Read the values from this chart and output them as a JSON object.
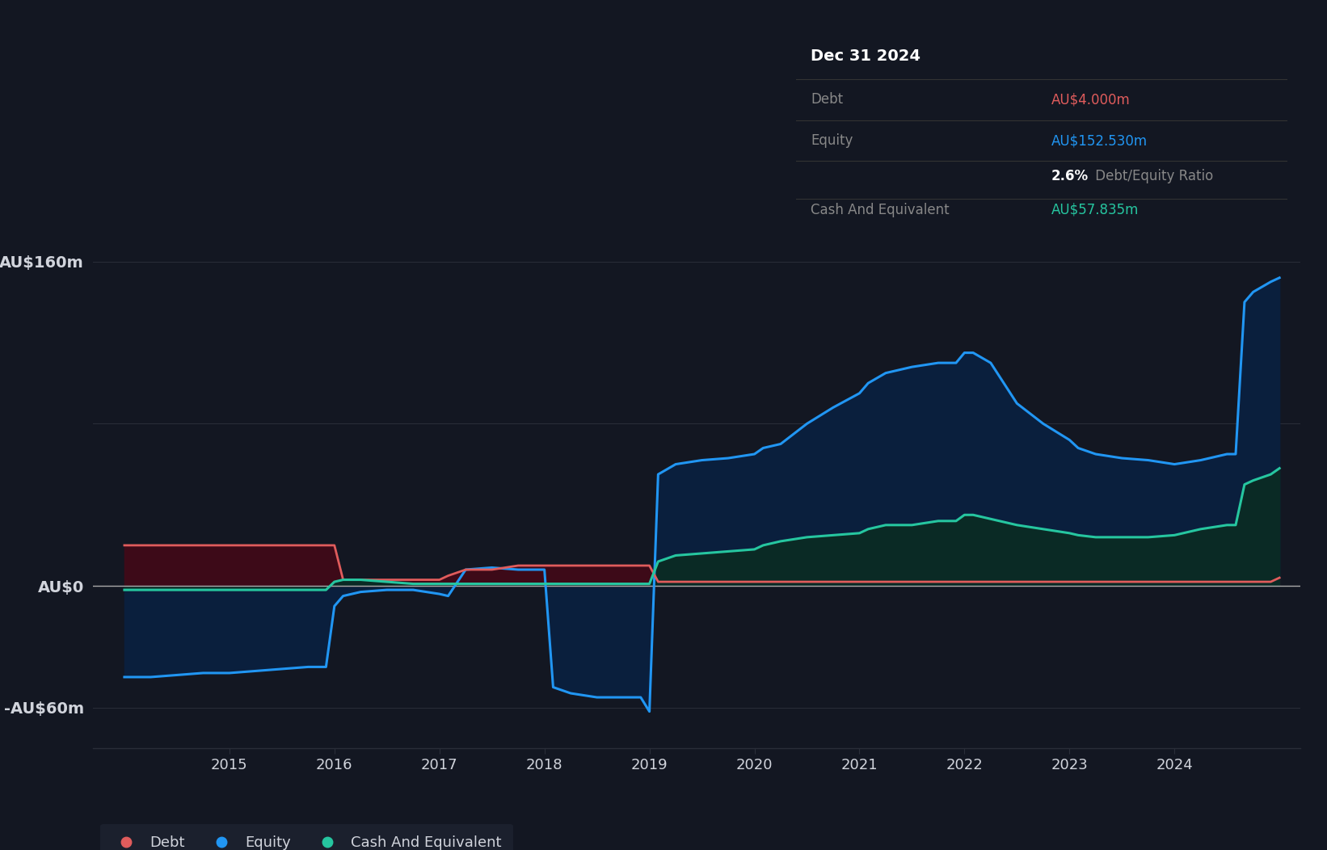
{
  "bg_color": "#131722",
  "plot_bg_color": "#131722",
  "grid_color": "#2a2e39",
  "zero_line_color": "#aaaaaa",
  "tooltip_date": "Dec 31 2024",
  "tooltip_debt": "AU$4.000m",
  "tooltip_equity": "AU$152.530m",
  "tooltip_ratio": "2.6%",
  "tooltip_ratio_suffix": " Debt/Equity Ratio",
  "tooltip_cash": "AU$57.835m",
  "ylabel_color": "#d1d4dc",
  "debt_color": "#e05c5c",
  "debt_fill_color": "#3d0a18",
  "equity_color": "#2196f3",
  "equity_fill_color": "#0a1f3d",
  "cash_color": "#26c6a0",
  "cash_fill_color": "#0a2a25",
  "legend_bg": "#1e2330",
  "ylim": [
    -80,
    180
  ],
  "xlim": [
    2013.7,
    2025.2
  ],
  "dates": [
    2014.0,
    2014.083,
    2014.25,
    2014.5,
    2014.75,
    2015.0,
    2015.25,
    2015.5,
    2015.75,
    2015.92,
    2016.0,
    2016.083,
    2016.25,
    2016.5,
    2016.75,
    2017.0,
    2017.083,
    2017.25,
    2017.5,
    2017.75,
    2017.92,
    2018.0,
    2018.083,
    2018.25,
    2018.5,
    2018.75,
    2018.917,
    2019.0,
    2019.083,
    2019.25,
    2019.5,
    2019.75,
    2020.0,
    2020.083,
    2020.25,
    2020.5,
    2020.75,
    2021.0,
    2021.083,
    2021.25,
    2021.5,
    2021.75,
    2021.92,
    2022.0,
    2022.083,
    2022.25,
    2022.5,
    2022.75,
    2023.0,
    2023.083,
    2023.25,
    2023.5,
    2023.75,
    2024.0,
    2024.25,
    2024.5,
    2024.583,
    2024.667,
    2024.75,
    2024.917,
    2025.0
  ],
  "debt": [
    20,
    20,
    20,
    20,
    20,
    20,
    20,
    20,
    20,
    20,
    20,
    3,
    3,
    3,
    3,
    3,
    5,
    8,
    8,
    10,
    10,
    10,
    10,
    10,
    10,
    10,
    10,
    10,
    2,
    2,
    2,
    2,
    2,
    2,
    2,
    2,
    2,
    2,
    2,
    2,
    2,
    2,
    2,
    2,
    2,
    2,
    2,
    2,
    2,
    2,
    2,
    2,
    2,
    2,
    2,
    2,
    2,
    2,
    2,
    2,
    4
  ],
  "equity": [
    -45,
    -45,
    -45,
    -44,
    -43,
    -43,
    -42,
    -41,
    -40,
    -40,
    -10,
    -5,
    -3,
    -2,
    -2,
    -4,
    -5,
    8,
    9,
    8,
    8,
    8,
    -50,
    -53,
    -55,
    -55,
    -55,
    -62,
    55,
    60,
    62,
    63,
    65,
    68,
    70,
    80,
    88,
    95,
    100,
    105,
    108,
    110,
    110,
    115,
    115,
    110,
    90,
    80,
    72,
    68,
    65,
    63,
    62,
    60,
    62,
    65,
    65,
    140,
    145,
    150,
    152
  ],
  "cash": [
    -2,
    -2,
    -2,
    -2,
    -2,
    -2,
    -2,
    -2,
    -2,
    -2,
    2,
    3,
    3,
    2,
    1,
    1,
    1,
    1,
    1,
    1,
    1,
    1,
    1,
    1,
    1,
    1,
    1,
    1,
    12,
    15,
    16,
    17,
    18,
    20,
    22,
    24,
    25,
    26,
    28,
    30,
    30,
    32,
    32,
    35,
    35,
    33,
    30,
    28,
    26,
    25,
    24,
    24,
    24,
    25,
    28,
    30,
    30,
    50,
    52,
    55,
    58
  ]
}
